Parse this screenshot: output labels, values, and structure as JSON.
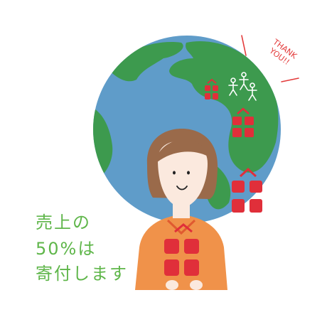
{
  "caption": {
    "line1": "売上の",
    "line2": "50%は",
    "line3": "寄付します"
  },
  "thanks": {
    "line1": "THANK",
    "line2": "YOU!!"
  },
  "colors": {
    "ocean": "#5f9cc9",
    "land": "#3d9a4e",
    "gift": "#e02f3a",
    "sweater": "#f0924a",
    "skin": "#fbe9de",
    "hair": "#9a6a4a",
    "caption_green": "#5fb64a",
    "thanks_red": "#e33a3a"
  }
}
